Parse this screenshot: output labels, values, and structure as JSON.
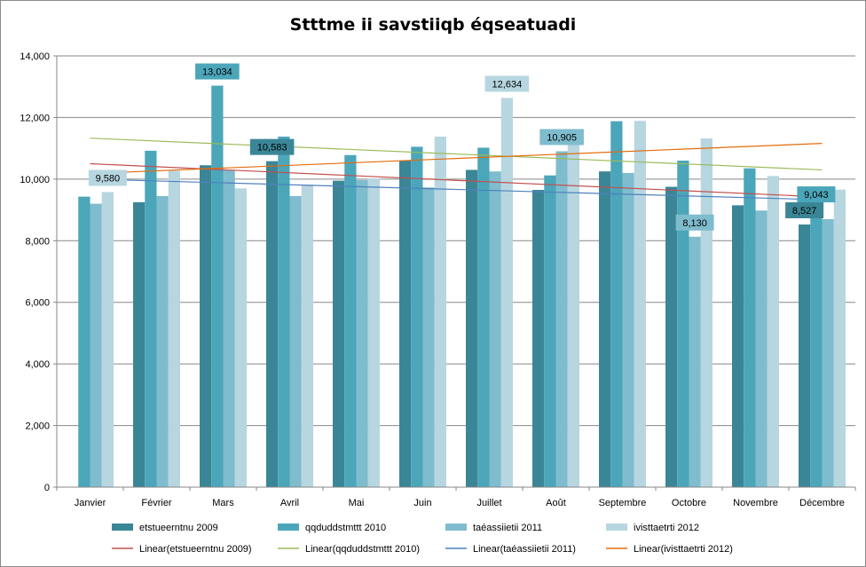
{
  "chart_data": {
    "type": "bar",
    "title": "Stttme ii savstiiqb éqseatuadi",
    "xlabel": "",
    "ylabel": "",
    "ylim": [
      0,
      14000
    ],
    "yticks": [
      0,
      2000,
      4000,
      6000,
      8000,
      10000,
      12000,
      14000
    ],
    "ytick_labels": [
      "0",
      "2,000",
      "4,000",
      "6,000",
      "8,000",
      "10,000",
      "12,000",
      "14,000"
    ],
    "grid": true,
    "legend_position": "bottom",
    "categories": [
      "Janvier",
      "Février",
      "Mars",
      "Avril",
      "Mai",
      "Juin",
      "Juillet",
      "Août",
      "Septembre",
      "Octobre",
      "Novembre",
      "Décembre"
    ],
    "series": [
      {
        "name": "etstueerntnu 2009",
        "color": "#3b8696",
        "values": [
          null,
          9250,
          10450,
          10583,
          9950,
          10600,
          10300,
          9650,
          10250,
          9750,
          9150,
          8527
        ]
      },
      {
        "name": "qqduddstmttt 2010",
        "color": "#4ba6ba",
        "values": [
          9430,
          10920,
          13034,
          11380,
          10780,
          11050,
          11020,
          10120,
          11880,
          10600,
          10350,
          9043
        ]
      },
      {
        "name": "taéassiietii 2011",
        "color": "#7fbccd",
        "values": [
          9200,
          9450,
          10300,
          9450,
          9970,
          9730,
          10250,
          10905,
          10200,
          8130,
          8980,
          8700
        ]
      },
      {
        "name": "ivisttaetrti 2012",
        "color": "#b7d6e0",
        "values": [
          9580,
          10270,
          9700,
          9820,
          10020,
          11380,
          12634,
          11280,
          11890,
          11320,
          10100,
          9660
        ]
      }
    ],
    "trendlines": [
      {
        "name": "Linear(etstueerntnu 2009)",
        "color": "#c0504d",
        "start": 10500,
        "end": 9420
      },
      {
        "name": "Linear(qqduddstmttt 2010)",
        "color": "#9bbb59",
        "start": 11330,
        "end": 10300
      },
      {
        "name": "Linear(taéassiietii 2011)",
        "color": "#4f81bd",
        "start": 10000,
        "end": 9330
      },
      {
        "name": "Linear(ivisttaetrti 2012)",
        "color": "#e46c0a",
        "start": 10180,
        "end": 11160
      }
    ],
    "data_labels": [
      {
        "category": "Janvier",
        "series": "ivisttaetrti 2012",
        "text": "9,580"
      },
      {
        "category": "Mars",
        "series": "qqduddstmttt 2010",
        "text": "13,034"
      },
      {
        "category": "Avril",
        "series": "etstueerntnu 2009",
        "text": "10,583"
      },
      {
        "category": "Juillet",
        "series": "ivisttaetrti 2012",
        "text": "12,634"
      },
      {
        "category": "Août",
        "series": "taéassiietii 2011",
        "text": "10,905"
      },
      {
        "category": "Octobre",
        "series": "taéassiietii 2011",
        "text": "8,130"
      },
      {
        "category": "Décembre",
        "series": "etstueerntnu 2009",
        "text": "8,527"
      },
      {
        "category": "Décembre",
        "series": "qqduddstmttt 2010",
        "text": "9,043"
      }
    ]
  }
}
